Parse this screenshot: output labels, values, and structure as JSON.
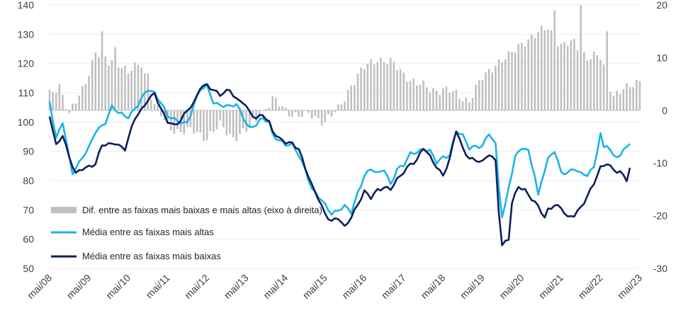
{
  "chart_data": {
    "type": "bar+line",
    "title": "",
    "left_axis": {
      "ylim": [
        50,
        140
      ],
      "ticks": [
        50,
        60,
        70,
        80,
        90,
        100,
        110,
        120,
        130,
        140
      ]
    },
    "right_axis": {
      "ylim": [
        -30,
        20
      ],
      "ticks": [
        -30,
        -20,
        -10,
        0,
        10,
        20
      ]
    },
    "x_ticks": [
      "mai/08",
      "mai/09",
      "mai/10",
      "mai/11",
      "mai/12",
      "mai/13",
      "mai/14",
      "mai/15",
      "mai/16",
      "mai/17",
      "mai/18",
      "mai/19",
      "mai/20",
      "mai/21",
      "mai/22",
      "mai/23"
    ],
    "x_start": "mai/08",
    "x_end": "mai/23",
    "n_points": 181,
    "series": [
      {
        "name": "Dif. entre as faixas mais baixas e mais altas (eixo à direita)",
        "type": "bar",
        "axis": "right",
        "color": "#bfbfbf",
        "knots": [
          [
            0,
            3
          ],
          [
            3,
            5
          ],
          [
            6,
            -1
          ],
          [
            10,
            4
          ],
          [
            14,
            11
          ],
          [
            18,
            9
          ],
          [
            20,
            10
          ],
          [
            24,
            7
          ],
          [
            28,
            9
          ],
          [
            32,
            1
          ],
          [
            36,
            -3
          ],
          [
            40,
            -4
          ],
          [
            44,
            -4
          ],
          [
            48,
            -5
          ],
          [
            52,
            -3
          ],
          [
            56,
            -5
          ],
          [
            60,
            -4
          ],
          [
            64,
            -1
          ],
          [
            68,
            2
          ],
          [
            72,
            0
          ],
          [
            76,
            -1
          ],
          [
            80,
            -1
          ],
          [
            84,
            -2
          ],
          [
            88,
            0
          ],
          [
            92,
            5
          ],
          [
            96,
            8
          ],
          [
            100,
            10
          ],
          [
            104,
            9
          ],
          [
            108,
            7
          ],
          [
            112,
            5
          ],
          [
            116,
            4
          ],
          [
            120,
            4
          ],
          [
            124,
            3
          ],
          [
            128,
            2
          ],
          [
            132,
            6
          ],
          [
            136,
            9
          ],
          [
            140,
            10
          ],
          [
            144,
            13
          ],
          [
            148,
            14
          ],
          [
            152,
            16
          ],
          [
            156,
            12
          ],
          [
            160,
            13
          ],
          [
            164,
            10
          ],
          [
            168,
            10
          ],
          [
            172,
            3
          ],
          [
            176,
            4
          ],
          [
            180,
            6
          ]
        ],
        "peaks": [
          [
            16,
            15
          ],
          [
            20,
            12
          ],
          [
            30,
            7
          ],
          [
            154,
            19
          ],
          [
            162,
            20
          ],
          [
            170,
            15
          ]
        ]
      },
      {
        "name": "Média entre as faixas mais altas",
        "type": "line",
        "axis": "left",
        "color": "#1bb3e8",
        "knots": [
          [
            0,
            107
          ],
          [
            2,
            94
          ],
          [
            4,
            100
          ],
          [
            6,
            88
          ],
          [
            7,
            83
          ],
          [
            9,
            86
          ],
          [
            12,
            91
          ],
          [
            14,
            97
          ],
          [
            17,
            100
          ],
          [
            19,
            105
          ],
          [
            21,
            103
          ],
          [
            24,
            102
          ],
          [
            27,
            106
          ],
          [
            30,
            111
          ],
          [
            32,
            110
          ],
          [
            34,
            107
          ],
          [
            36,
            102
          ],
          [
            39,
            100
          ],
          [
            42,
            100
          ],
          [
            44,
            106
          ],
          [
            46,
            111
          ],
          [
            48,
            112
          ],
          [
            50,
            107
          ],
          [
            52,
            106
          ],
          [
            55,
            105
          ],
          [
            57,
            106
          ],
          [
            59,
            102
          ],
          [
            61,
            98
          ],
          [
            63,
            99
          ],
          [
            65,
            101
          ],
          [
            67,
            100
          ],
          [
            68,
            96
          ],
          [
            70,
            94
          ],
          [
            72,
            92
          ],
          [
            74,
            92
          ],
          [
            76,
            89
          ],
          [
            78,
            84
          ],
          [
            80,
            77
          ],
          [
            83,
            73
          ],
          [
            86,
            69
          ],
          [
            88,
            70
          ],
          [
            90,
            71
          ],
          [
            92,
            69
          ],
          [
            94,
            76
          ],
          [
            96,
            82
          ],
          [
            98,
            84
          ],
          [
            100,
            82
          ],
          [
            102,
            84
          ],
          [
            104,
            79
          ],
          [
            106,
            84
          ],
          [
            108,
            85
          ],
          [
            110,
            89
          ],
          [
            112,
            90
          ],
          [
            114,
            91
          ],
          [
            116,
            90
          ],
          [
            118,
            86
          ],
          [
            120,
            88
          ],
          [
            122,
            89
          ],
          [
            124,
            97
          ],
          [
            126,
            95
          ],
          [
            128,
            91
          ],
          [
            130,
            92
          ],
          [
            132,
            92
          ],
          [
            134,
            96
          ],
          [
            136,
            92
          ],
          [
            137,
            78
          ],
          [
            138,
            68
          ],
          [
            139,
            72
          ],
          [
            140,
            78
          ],
          [
            142,
            88
          ],
          [
            144,
            91
          ],
          [
            146,
            90
          ],
          [
            148,
            82
          ],
          [
            149,
            75
          ],
          [
            150,
            80
          ],
          [
            152,
            87
          ],
          [
            154,
            90
          ],
          [
            156,
            83
          ],
          [
            158,
            83
          ],
          [
            160,
            84
          ],
          [
            162,
            82
          ],
          [
            164,
            82
          ],
          [
            166,
            85
          ],
          [
            168,
            96
          ],
          [
            169,
            91
          ],
          [
            170,
            92
          ],
          [
            172,
            88
          ],
          [
            174,
            89
          ],
          [
            176,
            92
          ],
          [
            177,
            93
          ]
        ]
      },
      {
        "name": "Média entre as faixas mais baixas",
        "type": "line",
        "axis": "left",
        "color": "#0d1f5c",
        "knots": [
          [
            0,
            102
          ],
          [
            2,
            92
          ],
          [
            4,
            96
          ],
          [
            6,
            88
          ],
          [
            8,
            82
          ],
          [
            10,
            84
          ],
          [
            12,
            85
          ],
          [
            14,
            86
          ],
          [
            16,
            92
          ],
          [
            18,
            92
          ],
          [
            20,
            93
          ],
          [
            23,
            91
          ],
          [
            26,
            101
          ],
          [
            28,
            104
          ],
          [
            30,
            108
          ],
          [
            32,
            110
          ],
          [
            34,
            104
          ],
          [
            36,
            100
          ],
          [
            38,
            99
          ],
          [
            40,
            101
          ],
          [
            42,
            104
          ],
          [
            44,
            106
          ],
          [
            46,
            112
          ],
          [
            48,
            113
          ],
          [
            50,
            111
          ],
          [
            52,
            109
          ],
          [
            55,
            111
          ],
          [
            57,
            108
          ],
          [
            59,
            107
          ],
          [
            61,
            103
          ],
          [
            63,
            101
          ],
          [
            65,
            103
          ],
          [
            67,
            100
          ],
          [
            68,
            97
          ],
          [
            70,
            94
          ],
          [
            72,
            93
          ],
          [
            74,
            93
          ],
          [
            76,
            91
          ],
          [
            78,
            84
          ],
          [
            80,
            78
          ],
          [
            82,
            74
          ],
          [
            84,
            69
          ],
          [
            86,
            66
          ],
          [
            88,
            67
          ],
          [
            90,
            64
          ],
          [
            92,
            68
          ],
          [
            94,
            72
          ],
          [
            96,
            76
          ],
          [
            98,
            74
          ],
          [
            100,
            77
          ],
          [
            102,
            78
          ],
          [
            104,
            77
          ],
          [
            106,
            80
          ],
          [
            108,
            83
          ],
          [
            110,
            86
          ],
          [
            112,
            87
          ],
          [
            114,
            91
          ],
          [
            116,
            88
          ],
          [
            118,
            85
          ],
          [
            120,
            82
          ],
          [
            122,
            87
          ],
          [
            124,
            97
          ],
          [
            126,
            91
          ],
          [
            128,
            88
          ],
          [
            130,
            87
          ],
          [
            132,
            86
          ],
          [
            134,
            89
          ],
          [
            136,
            87
          ],
          [
            137,
            70
          ],
          [
            138,
            58
          ],
          [
            140,
            60
          ],
          [
            141,
            72
          ],
          [
            143,
            78
          ],
          [
            145,
            77
          ],
          [
            147,
            74
          ],
          [
            149,
            71
          ],
          [
            151,
            67
          ],
          [
            152,
            70
          ],
          [
            154,
            72
          ],
          [
            156,
            71
          ],
          [
            158,
            67
          ],
          [
            160,
            68
          ],
          [
            162,
            71
          ],
          [
            164,
            75
          ],
          [
            166,
            79
          ],
          [
            168,
            84
          ],
          [
            170,
            86
          ],
          [
            172,
            84
          ],
          [
            174,
            83
          ],
          [
            176,
            80
          ],
          [
            177,
            84
          ]
        ]
      }
    ],
    "legend_placement": "center-left, inside plot"
  }
}
